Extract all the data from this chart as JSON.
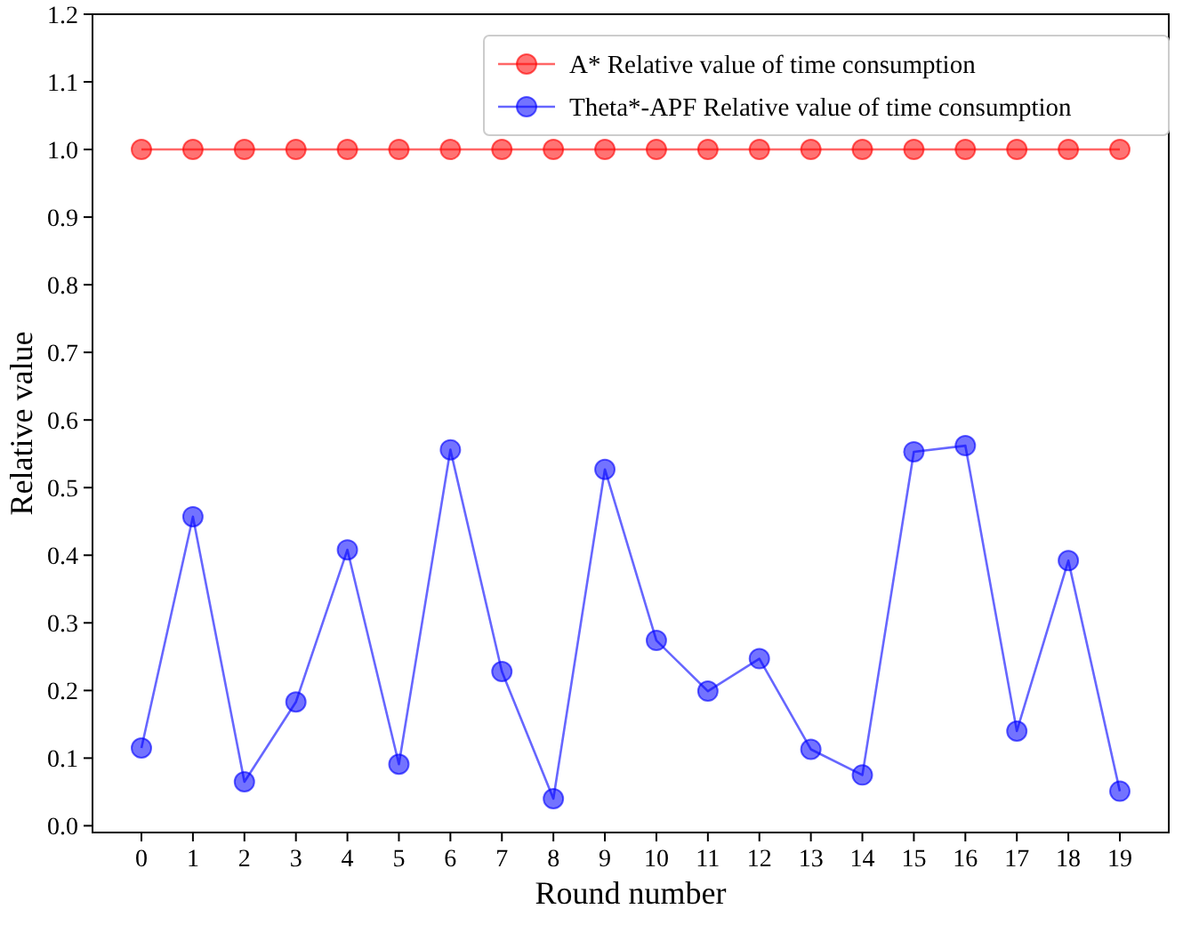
{
  "chart_data": {
    "type": "line",
    "xlabel": "Round number",
    "ylabel": "Relative value",
    "x": [
      0,
      1,
      2,
      3,
      4,
      5,
      6,
      7,
      8,
      9,
      10,
      11,
      12,
      13,
      14,
      15,
      16,
      17,
      18,
      19
    ],
    "xlim": [
      -0.95,
      19.95
    ],
    "xticks": [
      0,
      1,
      2,
      3,
      4,
      5,
      6,
      7,
      8,
      9,
      10,
      11,
      12,
      13,
      14,
      15,
      16,
      17,
      18,
      19
    ],
    "ylim": [
      -0.01,
      1.2
    ],
    "yticks": [
      {
        "value": 0,
        "label": "0.0"
      },
      0.1,
      0.2,
      0.3,
      0.4,
      0.5,
      0.6,
      0.7,
      0.8,
      0.9,
      {
        "value": 1,
        "label": "1.0"
      },
      1.1,
      1.2
    ],
    "marker": "circle",
    "legend": "top right",
    "grid": false,
    "series": [
      {
        "name": "A* Relative value of time consumption",
        "color": "#ff0000",
        "values": [
          1,
          1,
          1,
          1,
          1,
          1,
          1,
          1,
          1,
          1,
          1,
          1,
          1,
          1,
          1,
          1,
          1,
          1,
          1,
          1
        ]
      },
      {
        "name": "Theta*-APF Relative value of time consumption",
        "color": "#0000ff",
        "values": [
          0.115,
          0.457,
          0.065,
          0.183,
          0.408,
          0.091,
          0.556,
          0.228,
          0.04,
          0.527,
          0.274,
          0.199,
          0.247,
          0.113,
          0.075,
          0.553,
          0.562,
          0.14,
          0.392,
          0.051
        ]
      }
    ]
  }
}
